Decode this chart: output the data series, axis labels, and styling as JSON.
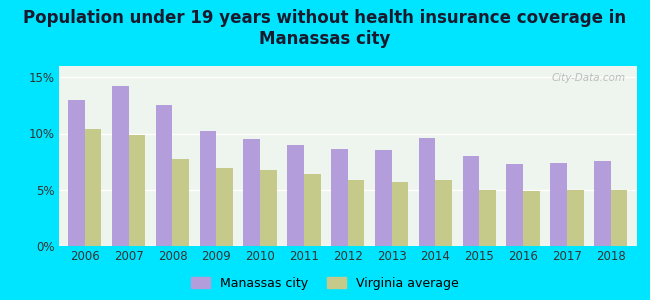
{
  "title": "Population under 19 years without health insurance coverage in\nManassas city",
  "years": [
    2006,
    2007,
    2008,
    2009,
    2010,
    2011,
    2012,
    2013,
    2014,
    2015,
    2016,
    2017,
    2018
  ],
  "manassas": [
    13.0,
    14.2,
    12.5,
    10.2,
    9.5,
    9.0,
    8.6,
    8.5,
    9.6,
    8.0,
    7.3,
    7.4,
    7.6
  ],
  "virginia": [
    10.4,
    9.9,
    7.7,
    6.9,
    6.8,
    6.4,
    5.9,
    5.7,
    5.9,
    5.0,
    4.9,
    5.0,
    5.0
  ],
  "bar_color_manassas": "#b39ddb",
  "bar_color_virginia": "#c5c98a",
  "background_outer": "#00e5ff",
  "background_inner": "#eef5ee",
  "ylim": [
    0,
    16
  ],
  "yticks": [
    0,
    5,
    10,
    15
  ],
  "ytick_labels": [
    "0%",
    "5%",
    "10%",
    "15%"
  ],
  "legend_manassas": "Manassas city",
  "legend_virginia": "Virginia average",
  "title_fontsize": 12,
  "watermark": "City-Data.com"
}
